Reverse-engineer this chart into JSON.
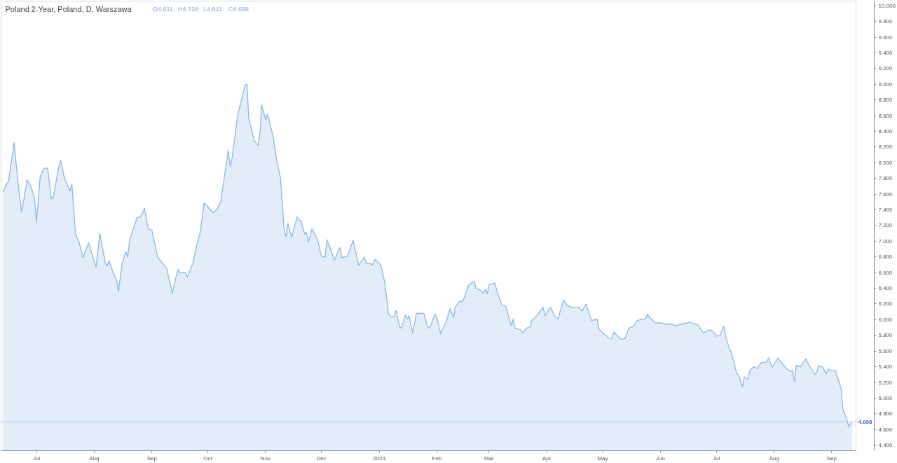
{
  "chart_data": {
    "type": "area",
    "title": "Poland 2-Year, Poland, D, Warszawa",
    "annotations": [
      "O4.611",
      "H4.728",
      "L4.611",
      "C4.698"
    ],
    "xlim": [
      "2022-06-12",
      "2023-09-14"
    ],
    "xticks": [
      {
        "value": "2022-07-01",
        "label": "Jul"
      },
      {
        "value": "2022-08-01",
        "label": "Aug"
      },
      {
        "value": "2022-09-01",
        "label": "Sep"
      },
      {
        "value": "2022-10-01",
        "label": "Oct"
      },
      {
        "value": "2022-11-01",
        "label": "Nov"
      },
      {
        "value": "2022-12-01",
        "label": "Dec"
      },
      {
        "value": "2023-01-01",
        "label": "2023"
      },
      {
        "value": "2023-02-01",
        "label": "Feb"
      },
      {
        "value": "2023-03-01",
        "label": "Mar"
      },
      {
        "value": "2023-04-01",
        "label": "Apr"
      },
      {
        "value": "2023-05-01",
        "label": "May"
      },
      {
        "value": "2023-06-01",
        "label": "Jun"
      },
      {
        "value": "2023-07-01",
        "label": "Jul"
      },
      {
        "value": "2023-08-01",
        "label": "Aug"
      },
      {
        "value": "2023-09-01",
        "label": "Sep"
      }
    ],
    "ylim": [
      4.33,
      10.06
    ],
    "yticks": [
      {
        "value": 4.4,
        "label": "4.400"
      },
      {
        "value": 4.6,
        "label": "4.600"
      },
      {
        "value": 4.8,
        "label": "4.800"
      },
      {
        "value": 5.0,
        "label": "5.000"
      },
      {
        "value": 5.2,
        "label": "5.200"
      },
      {
        "value": 5.4,
        "label": "5.400"
      },
      {
        "value": 5.6,
        "label": "5.600"
      },
      {
        "value": 5.8,
        "label": "5.800"
      },
      {
        "value": 6.0,
        "label": "6.000"
      },
      {
        "value": 6.2,
        "label": "6.200"
      },
      {
        "value": 6.4,
        "label": "6.400"
      },
      {
        "value": 6.6,
        "label": "6.600"
      },
      {
        "value": 6.8,
        "label": "6.800"
      },
      {
        "value": 7.0,
        "label": "7.000"
      },
      {
        "value": 7.2,
        "label": "7.200"
      },
      {
        "value": 7.4,
        "label": "7.400"
      },
      {
        "value": 7.6,
        "label": "7.600"
      },
      {
        "value": 7.8,
        "label": "7.800"
      },
      {
        "value": 8.0,
        "label": "8.000"
      },
      {
        "value": 8.2,
        "label": "8.200"
      },
      {
        "value": 8.4,
        "label": "8.400"
      },
      {
        "value": 8.6,
        "label": "8.600"
      },
      {
        "value": 8.8,
        "label": "8.800"
      },
      {
        "value": 9.0,
        "label": "9.000"
      },
      {
        "value": 9.2,
        "label": "9.200"
      },
      {
        "value": 9.4,
        "label": "9.400"
      },
      {
        "value": 9.6,
        "label": "9.600"
      },
      {
        "value": 9.8,
        "label": "9.800"
      },
      {
        "value": 10.0,
        "label": "10.000"
      }
    ],
    "ref_lines": [
      {
        "axis": "y",
        "value": 4.698,
        "label": "4.698",
        "color": "#a9c6e6"
      }
    ],
    "x": [
      "2022-06-13",
      "2022-06-15",
      "2022-06-16",
      "2022-06-19",
      "2022-06-21",
      "2022-06-23",
      "2022-06-24",
      "2022-06-26",
      "2022-06-28",
      "2022-06-30",
      "2022-07-01",
      "2022-07-03",
      "2022-07-05",
      "2022-07-07",
      "2022-07-09",
      "2022-07-10",
      "2022-07-13",
      "2022-07-14",
      "2022-07-16",
      "2022-07-19",
      "2022-07-20",
      "2022-07-22",
      "2022-07-24",
      "2022-07-26",
      "2022-07-29",
      "2022-08-02",
      "2022-08-04",
      "2022-08-07",
      "2022-08-08",
      "2022-08-09",
      "2022-08-11",
      "2022-08-13",
      "2022-08-14",
      "2022-08-16",
      "2022-08-18",
      "2022-08-19",
      "2022-08-20",
      "2022-08-24",
      "2022-08-26",
      "2022-08-28",
      "2022-08-30",
      "2022-09-01",
      "2022-09-04",
      "2022-09-09",
      "2022-09-10",
      "2022-09-12",
      "2022-09-14",
      "2022-09-15",
      "2022-09-16",
      "2022-09-19",
      "2022-09-20",
      "2022-09-23",
      "2022-09-25",
      "2022-09-27",
      "2022-09-29",
      "2022-10-04",
      "2022-10-06",
      "2022-10-08",
      "2022-10-12",
      "2022-10-13",
      "2022-10-14",
      "2022-10-17",
      "2022-10-21",
      "2022-10-22",
      "2022-10-23",
      "2022-10-26",
      "2022-10-28",
      "2022-10-29",
      "2022-10-30",
      "2022-11-01",
      "2022-11-02",
      "2022-11-05",
      "2022-11-07",
      "2022-11-09",
      "2022-11-11",
      "2022-11-12",
      "2022-11-13",
      "2022-11-15",
      "2022-11-18",
      "2022-11-19",
      "2022-11-20",
      "2022-11-22",
      "2022-11-23",
      "2022-11-24",
      "2022-11-26",
      "2022-11-29",
      "2022-12-01",
      "2022-12-03",
      "2022-12-04",
      "2022-12-08",
      "2022-12-11",
      "2022-12-12",
      "2022-12-15",
      "2022-12-18",
      "2022-12-21",
      "2022-12-24",
      "2022-12-25",
      "2022-12-27",
      "2022-12-28",
      "2022-12-30",
      "2023-01-02",
      "2023-01-04",
      "2023-01-06",
      "2023-01-07",
      "2023-01-09",
      "2023-01-10",
      "2023-01-12",
      "2023-01-13",
      "2023-01-15",
      "2023-01-16",
      "2023-01-17",
      "2023-01-19",
      "2023-01-21",
      "2023-01-25",
      "2023-01-27",
      "2023-01-28",
      "2023-01-31",
      "2023-02-01",
      "2023-02-03",
      "2023-02-05",
      "2023-02-06",
      "2023-02-08",
      "2023-02-10",
      "2023-02-11",
      "2023-02-13",
      "2023-02-15",
      "2023-02-18",
      "2023-02-21",
      "2023-02-22",
      "2023-02-24",
      "2023-02-26",
      "2023-02-27",
      "2023-02-28",
      "2023-03-01",
      "2023-03-02",
      "2023-03-04",
      "2023-03-06",
      "2023-03-08",
      "2023-03-10",
      "2023-03-13",
      "2023-03-14",
      "2023-03-15",
      "2023-03-18",
      "2023-03-19",
      "2023-03-21",
      "2023-03-23",
      "2023-03-24",
      "2023-03-27",
      "2023-03-30",
      "2023-03-31",
      "2023-04-03",
      "2023-04-05",
      "2023-04-07",
      "2023-04-10",
      "2023-04-12",
      "2023-04-15",
      "2023-04-18",
      "2023-04-20",
      "2023-04-22",
      "2023-04-25",
      "2023-04-28",
      "2023-04-29",
      "2023-05-02",
      "2023-05-03",
      "2023-05-04",
      "2023-05-06",
      "2023-05-07",
      "2023-05-09",
      "2023-05-11",
      "2023-05-13",
      "2023-05-15",
      "2023-05-18",
      "2023-05-19",
      "2023-05-21",
      "2023-05-24",
      "2023-05-25",
      "2023-05-27",
      "2023-05-29",
      "2023-06-01",
      "2023-06-04",
      "2023-06-07",
      "2023-06-09",
      "2023-06-13",
      "2023-06-16",
      "2023-06-17",
      "2023-06-19",
      "2023-06-21",
      "2023-06-24",
      "2023-06-27",
      "2023-06-29",
      "2023-07-01",
      "2023-07-03",
      "2023-07-05",
      "2023-07-06",
      "2023-07-08",
      "2023-07-09",
      "2023-07-12",
      "2023-07-13",
      "2023-07-15",
      "2023-07-16",
      "2023-07-18",
      "2023-07-19",
      "2023-07-21",
      "2023-07-23",
      "2023-07-25",
      "2023-07-28",
      "2023-07-29",
      "2023-07-31",
      "2023-08-03",
      "2023-08-08",
      "2023-08-10",
      "2023-08-11",
      "2023-08-12",
      "2023-08-13",
      "2023-08-15",
      "2023-08-18",
      "2023-08-20",
      "2023-08-23",
      "2023-08-24",
      "2023-08-25",
      "2023-08-27",
      "2023-08-29",
      "2023-08-30",
      "2023-09-01",
      "2023-09-03",
      "2023-09-06",
      "2023-09-07",
      "2023-09-09",
      "2023-09-10",
      "2023-09-12"
    ],
    "series": [
      {
        "color": "#8ab6e6",
        "values": [
          7.63,
          7.73,
          7.76,
          8.26,
          7.77,
          7.37,
          7.5,
          7.78,
          7.7,
          7.55,
          7.24,
          7.82,
          7.93,
          7.93,
          7.54,
          7.55,
          7.95,
          8.03,
          7.81,
          7.64,
          7.73,
          7.09,
          6.98,
          6.79,
          6.98,
          6.67,
          7.1,
          6.72,
          6.69,
          6.75,
          6.61,
          6.51,
          6.36,
          6.71,
          6.87,
          6.8,
          7.01,
          7.3,
          7.31,
          7.42,
          7.16,
          7.14,
          6.8,
          6.65,
          6.53,
          6.34,
          6.55,
          6.64,
          6.6,
          6.6,
          6.54,
          6.72,
          6.94,
          7.12,
          7.49,
          7.36,
          7.41,
          7.51,
          8.16,
          7.95,
          8.06,
          8.6,
          8.99,
          9.0,
          8.56,
          8.28,
          8.22,
          8.38,
          8.74,
          8.55,
          8.62,
          8.35,
          8.02,
          7.81,
          7.14,
          7.06,
          7.23,
          7.05,
          7.31,
          7.27,
          7.26,
          7.09,
          7.11,
          6.99,
          7.16,
          7.01,
          6.81,
          6.8,
          7.02,
          6.76,
          6.92,
          6.79,
          6.81,
          7.01,
          6.69,
          6.8,
          6.71,
          6.72,
          6.69,
          6.77,
          6.69,
          6.47,
          6.08,
          6.04,
          6.04,
          6.12,
          5.91,
          5.89,
          6.06,
          6.01,
          6.05,
          5.83,
          6.08,
          6.08,
          5.91,
          5.89,
          6.07,
          6.03,
          5.82,
          5.93,
          5.97,
          6.14,
          6.03,
          6.17,
          6.23,
          6.24,
          6.44,
          6.49,
          6.4,
          6.38,
          6.34,
          6.39,
          6.33,
          6.45,
          6.45,
          6.47,
          6.31,
          6.18,
          6.17,
          5.92,
          6.01,
          5.89,
          5.87,
          5.83,
          5.89,
          5.91,
          5.99,
          6.06,
          6.16,
          6.05,
          6.16,
          6.05,
          6.01,
          6.25,
          6.18,
          6.15,
          6.16,
          6.11,
          6.2,
          5.99,
          6.01,
          5.88,
          5.81,
          5.8,
          5.77,
          5.76,
          5.84,
          5.79,
          5.75,
          5.76,
          5.89,
          5.92,
          5.98,
          6.0,
          6.01,
          6.07,
          6.01,
          5.96,
          5.96,
          5.94,
          5.94,
          5.92,
          5.95,
          5.96,
          5.97,
          5.95,
          5.94,
          5.83,
          5.87,
          5.86,
          5.79,
          5.8,
          5.92,
          5.79,
          5.63,
          5.59,
          5.31,
          5.3,
          5.14,
          5.27,
          5.24,
          5.35,
          5.4,
          5.38,
          5.45,
          5.46,
          5.51,
          5.39,
          5.51,
          5.37,
          5.34,
          5.35,
          5.21,
          5.42,
          5.4,
          5.5,
          5.41,
          5.3,
          5.34,
          5.41,
          5.4,
          5.31,
          5.37,
          5.35,
          5.35,
          5.12,
          4.85,
          4.74,
          4.64,
          4.7
        ]
      }
    ]
  }
}
